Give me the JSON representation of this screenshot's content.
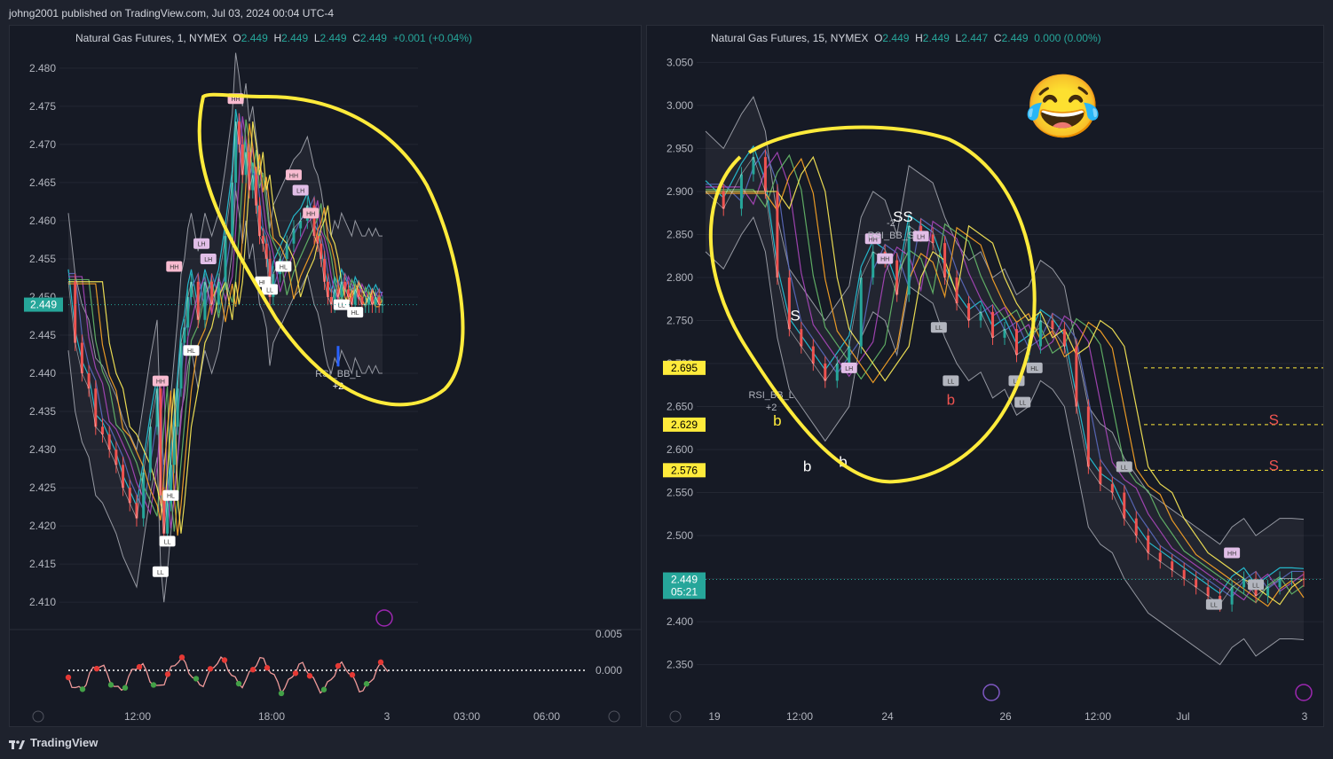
{
  "header": {
    "published": "johng2001 published on TradingView.com, Jul 03, 2024 00:04 UTC-4"
  },
  "footer": {
    "brand": "TradingView"
  },
  "colors": {
    "up": "#26a69a",
    "down": "#ef5350",
    "annotation": "#ffeb3b",
    "price_tag": "#26a69a",
    "level_tag": "#ffeb3b"
  },
  "chart_data": [
    {
      "type": "line",
      "instrument": "Natural Gas Futures, 1, NYMEX",
      "ohlc": {
        "o_label": "O",
        "o": "2.449",
        "h_label": "H",
        "h": "2.449",
        "l_label": "L",
        "l": "2.449",
        "c_label": "C",
        "c": "2.449",
        "change": "+0.001 (+0.04%)"
      },
      "y_ticks": [
        "2.480",
        "2.475",
        "2.470",
        "2.465",
        "2.460",
        "2.455",
        "2.450",
        "2.445",
        "2.440",
        "2.435",
        "2.430",
        "2.425",
        "2.420",
        "2.415",
        "2.410"
      ],
      "ylim": [
        2.407,
        2.483
      ],
      "last_price_tag": "2.449",
      "x_ticks": [
        "12:00",
        "18:00",
        "3",
        "03:00",
        "06:00"
      ],
      "oscillator_ticks": [
        "0.005",
        "0.000"
      ],
      "price_series": {
        "x": [
          0,
          2,
          4,
          6,
          8,
          10,
          12,
          14,
          16,
          18,
          20,
          22,
          24,
          26,
          27,
          28,
          29,
          30,
          31,
          32,
          33,
          34,
          35,
          36,
          38,
          40,
          42,
          44,
          46,
          48,
          49,
          50,
          51,
          52,
          53,
          54,
          55,
          56,
          57,
          58,
          59,
          60,
          62,
          64,
          66,
          68,
          70,
          72,
          73,
          74,
          75,
          76,
          77,
          78,
          79,
          80,
          81,
          82,
          83,
          84,
          85,
          86,
          87,
          88,
          89,
          90,
          91,
          92
        ],
        "y": [
          2.452,
          2.444,
          2.44,
          2.438,
          2.433,
          2.432,
          2.43,
          2.428,
          2.425,
          2.423,
          2.421,
          2.427,
          2.433,
          2.438,
          2.424,
          2.419,
          2.423,
          2.428,
          2.433,
          2.438,
          2.444,
          2.446,
          2.45,
          2.452,
          2.447,
          2.452,
          2.449,
          2.452,
          2.458,
          2.465,
          2.473,
          2.47,
          2.466,
          2.469,
          2.464,
          2.466,
          2.462,
          2.458,
          2.457,
          2.455,
          2.45,
          2.453,
          2.455,
          2.457,
          2.459,
          2.46,
          2.462,
          2.458,
          2.457,
          2.455,
          2.452,
          2.45,
          2.449,
          2.451,
          2.45,
          2.452,
          2.451,
          2.45,
          2.449,
          2.451,
          2.45,
          2.449,
          2.449,
          2.45,
          2.449,
          2.45,
          2.449,
          2.449
        ]
      },
      "labels": [
        {
          "text": "HH",
          "x": 49,
          "y": 2.476,
          "kind": "hh"
        },
        {
          "text": "HH",
          "x": 31,
          "y": 2.454,
          "kind": "hh"
        },
        {
          "text": "HH",
          "x": 27,
          "y": 2.439,
          "kind": "hh"
        },
        {
          "text": "LH",
          "x": 39,
          "y": 2.457,
          "kind": "lh"
        },
        {
          "text": "LH",
          "x": 41,
          "y": 2.455,
          "kind": "lh"
        },
        {
          "text": "HH",
          "x": 66,
          "y": 2.466,
          "kind": "hh"
        },
        {
          "text": "LH",
          "x": 68,
          "y": 2.464,
          "kind": "lh"
        },
        {
          "text": "HH",
          "x": 71,
          "y": 2.461,
          "kind": "hh"
        },
        {
          "text": "HL",
          "x": 57,
          "y": 2.452,
          "kind": "hl"
        },
        {
          "text": "LL",
          "x": 59,
          "y": 2.451,
          "kind": "ll"
        },
        {
          "text": "HL",
          "x": 63,
          "y": 2.454,
          "kind": "hl"
        },
        {
          "text": "LL",
          "x": 29,
          "y": 2.418,
          "kind": "ll"
        },
        {
          "text": "LL",
          "x": 27,
          "y": 2.414,
          "kind": "ll"
        },
        {
          "text": "HL",
          "x": 30,
          "y": 2.424,
          "kind": "hl"
        },
        {
          "text": "HL",
          "x": 36,
          "y": 2.443,
          "kind": "hl"
        },
        {
          "text": "LL",
          "x": 80,
          "y": 2.449,
          "kind": "ll"
        },
        {
          "text": "HL",
          "x": 84,
          "y": 2.448,
          "kind": "hl"
        }
      ],
      "signal": {
        "text": "RSI_BB_L",
        "sub": "+2",
        "x": 79,
        "y": 2.443
      }
    },
    {
      "type": "line",
      "instrument": "Natural Gas Futures, 15, NYMEX",
      "ohlc": {
        "o_label": "O",
        "o": "2.449",
        "h_label": "H",
        "h": "2.449",
        "l_label": "L",
        "l": "2.447",
        "c_label": "C",
        "c": "2.449",
        "change": "0.000 (0.00%)"
      },
      "y_ticks": [
        "3.050",
        "3.000",
        "2.950",
        "2.900",
        "2.850",
        "2.800",
        "2.750",
        "2.700",
        "2.650",
        "2.600",
        "2.550",
        "2.500",
        "2.450",
        "2.400",
        "2.350"
      ],
      "ylim": [
        2.33,
        3.07
      ],
      "last_price_tag": "2.449",
      "countdown": "05:21",
      "levels": [
        "2.695",
        "2.629",
        "2.576"
      ],
      "x_ticks": [
        "19",
        "12:00",
        "24",
        "26",
        "12:00",
        "Jul",
        "3"
      ],
      "price_series": {
        "x": [
          0,
          3,
          6,
          8,
          10,
          12,
          14,
          16,
          18,
          20,
          22,
          24,
          26,
          28,
          30,
          32,
          34,
          36,
          38,
          40,
          42,
          44,
          46,
          48,
          50,
          52,
          54,
          56,
          58,
          60,
          62,
          64,
          66,
          68,
          70,
          72,
          74,
          76,
          78,
          80,
          82,
          84,
          86,
          88,
          90,
          92,
          94,
          96,
          98,
          100
        ],
        "y": [
          2.9,
          2.88,
          2.92,
          2.94,
          2.9,
          2.8,
          2.74,
          2.72,
          2.7,
          2.68,
          2.7,
          2.72,
          2.8,
          2.83,
          2.82,
          2.78,
          2.86,
          2.85,
          2.84,
          2.8,
          2.77,
          2.75,
          2.76,
          2.73,
          2.74,
          2.71,
          2.72,
          2.75,
          2.74,
          2.72,
          2.65,
          2.58,
          2.56,
          2.55,
          2.52,
          2.5,
          2.48,
          2.47,
          2.46,
          2.45,
          2.44,
          2.43,
          2.42,
          2.44,
          2.45,
          2.43,
          2.44,
          2.45,
          2.45,
          2.449
        ]
      },
      "labels": [
        {
          "text": "HH",
          "x": 30,
          "y": 2.822,
          "kind": "hh"
        },
        {
          "text": "LH",
          "x": 36,
          "y": 2.848,
          "kind": "lh"
        },
        {
          "text": "LL",
          "x": 39,
          "y": 2.742,
          "kind": "ll"
        },
        {
          "text": "LL",
          "x": 41,
          "y": 2.68,
          "kind": "ll"
        },
        {
          "text": "LH",
          "x": 24,
          "y": 2.695,
          "kind": "lh"
        },
        {
          "text": "HH",
          "x": 28,
          "y": 2.845,
          "kind": "hh"
        },
        {
          "text": "LL",
          "x": 52,
          "y": 2.68,
          "kind": "ll"
        },
        {
          "text": "LL",
          "x": 53,
          "y": 2.655,
          "kind": "ll"
        },
        {
          "text": "HL",
          "x": 55,
          "y": 2.695,
          "kind": "hl"
        },
        {
          "text": "LL",
          "x": 70,
          "y": 2.58,
          "kind": "ll"
        },
        {
          "text": "HH",
          "x": 88,
          "y": 2.48,
          "kind": "hh"
        },
        {
          "text": "LL",
          "x": 85,
          "y": 2.42,
          "kind": "ll"
        },
        {
          "text": "LL",
          "x": 92,
          "y": 2.443,
          "kind": "ll"
        }
      ],
      "markers": [
        {
          "text": "S",
          "x": 15,
          "y": 2.75,
          "color": "white"
        },
        {
          "text": "b",
          "x": 12,
          "y": 2.628,
          "color": "yellow"
        },
        {
          "text": "b",
          "x": 17,
          "y": 2.575,
          "color": "white"
        },
        {
          "text": "b",
          "x": 23,
          "y": 2.58,
          "color": "white"
        },
        {
          "text": "SS",
          "x": 33,
          "y": 2.865,
          "color": "white"
        },
        {
          "text": "b",
          "x": 41,
          "y": 2.652,
          "color": "red"
        },
        {
          "text": "S",
          "x": 95,
          "y": 2.629,
          "color": "red"
        },
        {
          "text": "S",
          "x": 95,
          "y": 2.576,
          "color": "red"
        }
      ],
      "signals": [
        {
          "text": "RSI_BB_L",
          "sub": "+2",
          "x": 11,
          "y": 2.66
        },
        {
          "text": "-2",
          "sub": "RSI_BB_S",
          "x": 31,
          "y": 2.86
        }
      ]
    }
  ]
}
